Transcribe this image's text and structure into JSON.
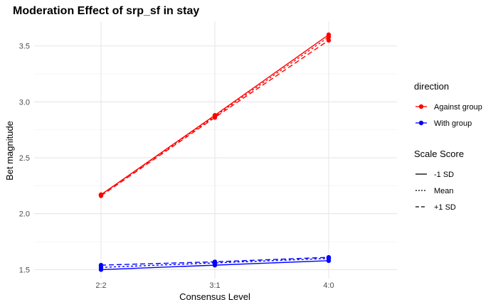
{
  "chart_data": {
    "type": "line",
    "title": "Moderation Effect of srp_sf in stay",
    "xlabel": "Consensus Level",
    "ylabel": "Bet magnitude",
    "categories": [
      "2:2",
      "3:1",
      "4:0"
    ],
    "ylim": [
      1.42,
      3.72
    ],
    "yticks": [
      "1.5",
      "2.0",
      "2.5",
      "3.0",
      "3.5"
    ],
    "grid": true,
    "legend_placement": "right",
    "legends": [
      {
        "title": "direction",
        "entries": [
          {
            "label": "Against group",
            "color": "#ff0000"
          },
          {
            "label": "With group",
            "color": "#0000ff"
          }
        ]
      },
      {
        "title": "Scale Score",
        "entries": [
          {
            "label": "-1 SD",
            "linetype": "solid"
          },
          {
            "label": "Mean",
            "linetype": "dotted"
          },
          {
            "label": "+1 SD",
            "linetype": "dashed"
          }
        ]
      }
    ],
    "series": [
      {
        "direction": "Against group",
        "scale": "-1 SD",
        "color": "#ff0000",
        "linetype": "solid",
        "values": [
          2.17,
          2.88,
          3.6
        ]
      },
      {
        "direction": "Against group",
        "scale": "Mean",
        "color": "#ff0000",
        "linetype": "dotted",
        "values": [
          2.17,
          2.87,
          3.58
        ]
      },
      {
        "direction": "Against group",
        "scale": "+1 SD",
        "color": "#ff0000",
        "linetype": "dashed",
        "values": [
          2.16,
          2.86,
          3.55
        ]
      },
      {
        "direction": "With group",
        "scale": "-1 SD",
        "color": "#0000ff",
        "linetype": "solid",
        "values": [
          1.5,
          1.54,
          1.58
        ]
      },
      {
        "direction": "With group",
        "scale": "Mean",
        "color": "#0000ff",
        "linetype": "dotted",
        "values": [
          1.52,
          1.56,
          1.6
        ]
      },
      {
        "direction": "With group",
        "scale": "+1 SD",
        "color": "#0000ff",
        "linetype": "dashed",
        "values": [
          1.54,
          1.57,
          1.61
        ]
      }
    ]
  }
}
